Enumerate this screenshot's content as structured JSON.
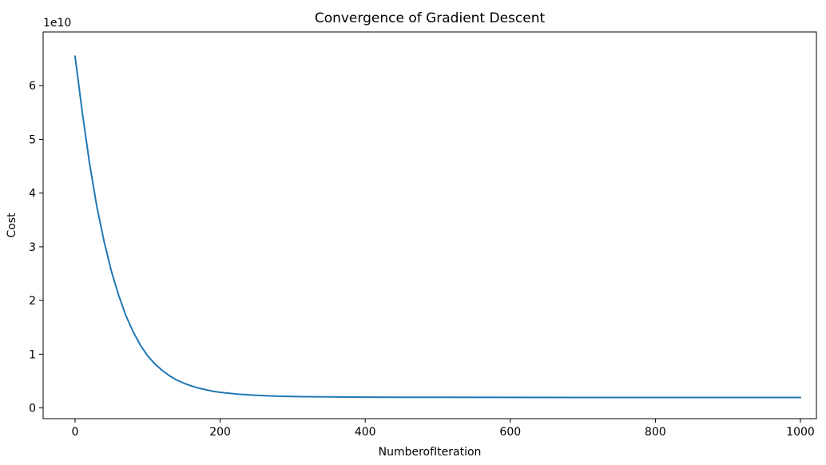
{
  "chart_data": {
    "type": "line",
    "title": "Convergence of Gradient Descent",
    "xlabel": "NumberofIteration",
    "ylabel": "Cost",
    "y_offset_label": "1e10",
    "y_scale": 10000000000,
    "xlim": [
      -44,
      1022
    ],
    "ylim": [
      -0.2,
      7.0
    ],
    "x_ticks": [
      0,
      200,
      400,
      600,
      800,
      1000
    ],
    "x_tick_labels": [
      "0",
      "200",
      "400",
      "600",
      "800",
      "1000"
    ],
    "y_ticks": [
      0,
      1,
      2,
      3,
      4,
      5,
      6
    ],
    "y_tick_labels": [
      "0",
      "1",
      "2",
      "3",
      "4",
      "5",
      "6"
    ],
    "grid": false,
    "legend": "none",
    "series": [
      {
        "color": "#1f77b4",
        "x": [
          0,
          10,
          20,
          30,
          40,
          50,
          60,
          70,
          80,
          90,
          100,
          110,
          120,
          130,
          140,
          150,
          160,
          170,
          180,
          190,
          200,
          225,
          250,
          275,
          300,
          350,
          400,
          450,
          500,
          600,
          700,
          800,
          900,
          1000
        ],
        "y": [
          6.55,
          5.5,
          4.55,
          3.75,
          3.1,
          2.55,
          2.1,
          1.72,
          1.42,
          1.17,
          0.97,
          0.82,
          0.7,
          0.6,
          0.52,
          0.46,
          0.41,
          0.37,
          0.34,
          0.31,
          0.29,
          0.255,
          0.235,
          0.22,
          0.212,
          0.205,
          0.2,
          0.198,
          0.197,
          0.196,
          0.195,
          0.195,
          0.195,
          0.195
        ]
      }
    ]
  }
}
